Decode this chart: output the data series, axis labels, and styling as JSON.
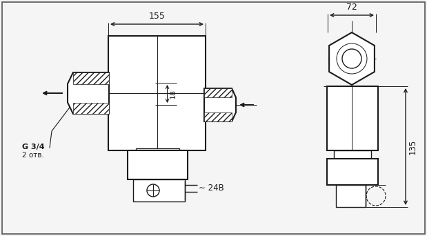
{
  "bg_color": "#f5f5f5",
  "line_color": "#1a1a1a",
  "figsize": [
    6.19,
    3.42
  ],
  "dpi": 100,
  "dim_155": "155",
  "dim_72": "72",
  "dim_18": "18",
  "dim_135": "135",
  "label_g34": "G 3/4",
  "label_2otv": "2 отв.",
  "label_24v": "∼ 24В"
}
